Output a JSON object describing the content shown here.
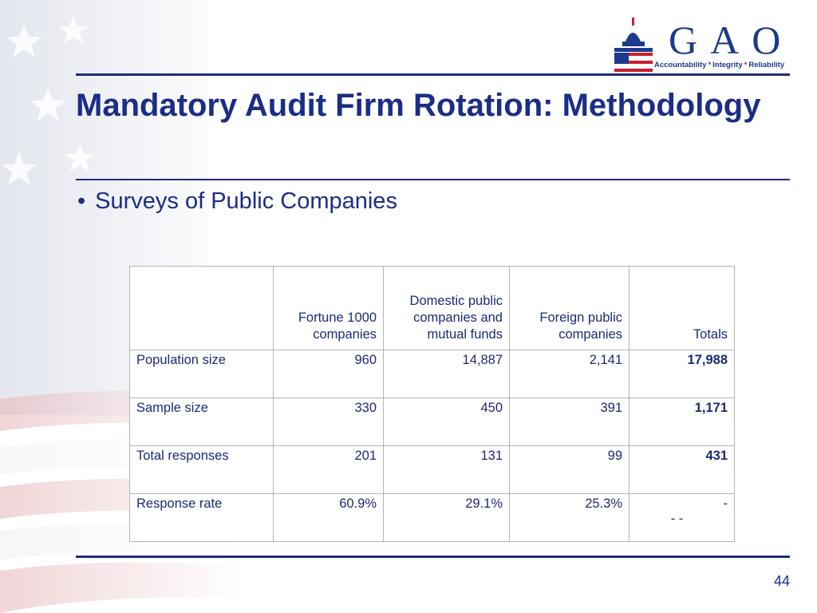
{
  "logo": {
    "letters": "GAO",
    "tagline_parts": [
      "Accountability",
      "Integrity",
      "Reliability"
    ],
    "separator": "*"
  },
  "slide": {
    "title": "Mandatory Audit Firm Rotation: Methodology",
    "bullet": "Surveys of Public Companies",
    "page_number": "44"
  },
  "table": {
    "headers": [
      "",
      "Fortune 1000 companies",
      "Domestic public companies and mutual funds",
      "Foreign public companies",
      "Totals"
    ],
    "rows": [
      {
        "label": "Population size",
        "values": [
          "960",
          "14,887",
          "2,141"
        ],
        "total": "17,988"
      },
      {
        "label": "Sample size",
        "values": [
          "330",
          "450",
          "391"
        ],
        "total": "1,171"
      },
      {
        "label": "Total responses",
        "values": [
          "201",
          "131",
          "99"
        ],
        "total": "431"
      },
      {
        "label": "Response rate",
        "values": [
          "60.9%",
          "29.1%",
          "25.3%"
        ],
        "total": "-",
        "total_extra": "- -"
      }
    ]
  },
  "colors": {
    "title_blue": "#1b2d86",
    "rule_blue": "#1e2d78",
    "logo_red": "#c8202f"
  },
  "icons": {
    "logo_mark": "capitol-dome-flag-icon",
    "background": "american-flag-watermark"
  }
}
